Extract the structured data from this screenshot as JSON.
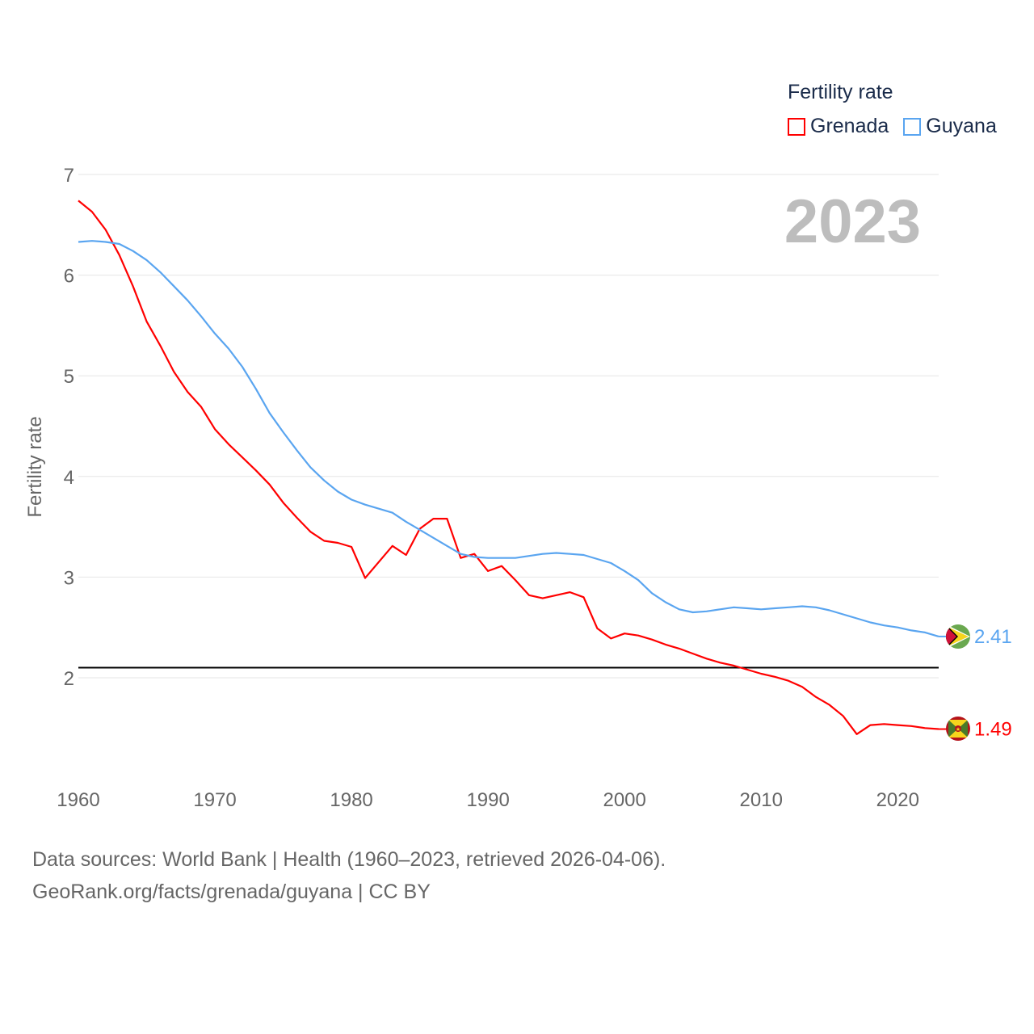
{
  "chart_data": {
    "type": "line",
    "title": "Fertility rate",
    "year_label": "2023",
    "ylabel": "Fertility rate",
    "xlabel": "",
    "xlim": [
      1960,
      2023
    ],
    "ylim": [
      1.0,
      7.0
    ],
    "xticks": [
      1960,
      1970,
      1980,
      1990,
      2000,
      2010,
      2020
    ],
    "yticks": [
      2,
      3,
      4,
      5,
      6,
      7
    ],
    "grid": true,
    "legend_position": "top-right",
    "reference_line": 2.1,
    "x": [
      1960,
      1961,
      1962,
      1963,
      1964,
      1965,
      1966,
      1967,
      1968,
      1969,
      1970,
      1971,
      1972,
      1973,
      1974,
      1975,
      1976,
      1977,
      1978,
      1979,
      1980,
      1981,
      1982,
      1983,
      1984,
      1985,
      1986,
      1987,
      1988,
      1989,
      1990,
      1991,
      1992,
      1993,
      1994,
      1995,
      1996,
      1997,
      1998,
      1999,
      2000,
      2001,
      2002,
      2003,
      2004,
      2005,
      2006,
      2007,
      2008,
      2009,
      2010,
      2011,
      2012,
      2013,
      2014,
      2015,
      2016,
      2017,
      2018,
      2019,
      2020,
      2021,
      2022,
      2023
    ],
    "series": [
      {
        "name": "Grenada",
        "color": "#ff0000",
        "end_label": "1.49",
        "values": [
          6.74,
          6.63,
          6.45,
          6.2,
          5.89,
          5.54,
          5.3,
          5.04,
          4.84,
          4.69,
          4.47,
          4.32,
          4.19,
          4.06,
          3.92,
          3.74,
          3.59,
          3.45,
          3.36,
          3.34,
          3.3,
          2.99,
          3.15,
          3.31,
          3.22,
          3.48,
          3.58,
          3.58,
          3.19,
          3.23,
          3.06,
          3.11,
          2.97,
          2.82,
          2.79,
          2.82,
          2.85,
          2.8,
          2.49,
          2.39,
          2.44,
          2.42,
          2.38,
          2.33,
          2.29,
          2.24,
          2.19,
          2.15,
          2.12,
          2.08,
          2.04,
          2.01,
          1.97,
          1.91,
          1.81,
          1.73,
          1.62,
          1.44,
          1.53,
          1.54,
          1.53,
          1.52,
          1.5,
          1.49
        ]
      },
      {
        "name": "Guyana",
        "color": "#5aa5f0",
        "end_label": "2.41",
        "values": [
          6.33,
          6.34,
          6.33,
          6.31,
          6.24,
          6.15,
          6.03,
          5.89,
          5.75,
          5.59,
          5.42,
          5.27,
          5.09,
          4.87,
          4.63,
          4.44,
          4.26,
          4.09,
          3.96,
          3.85,
          3.77,
          3.72,
          3.68,
          3.64,
          3.55,
          3.47,
          3.39,
          3.31,
          3.23,
          3.2,
          3.19,
          3.19,
          3.19,
          3.21,
          3.23,
          3.24,
          3.23,
          3.22,
          3.18,
          3.14,
          3.06,
          2.97,
          2.84,
          2.75,
          2.68,
          2.65,
          2.66,
          2.68,
          2.7,
          2.69,
          2.68,
          2.69,
          2.7,
          2.71,
          2.7,
          2.67,
          2.63,
          2.59,
          2.55,
          2.52,
          2.5,
          2.47,
          2.45,
          2.41
        ]
      }
    ]
  },
  "source": {
    "line1": "Data sources: World Bank | Health (1960–2023, retrieved 2026-04-06).",
    "line2": "GeoRank.org/facts/grenada/guyana | CC BY"
  }
}
